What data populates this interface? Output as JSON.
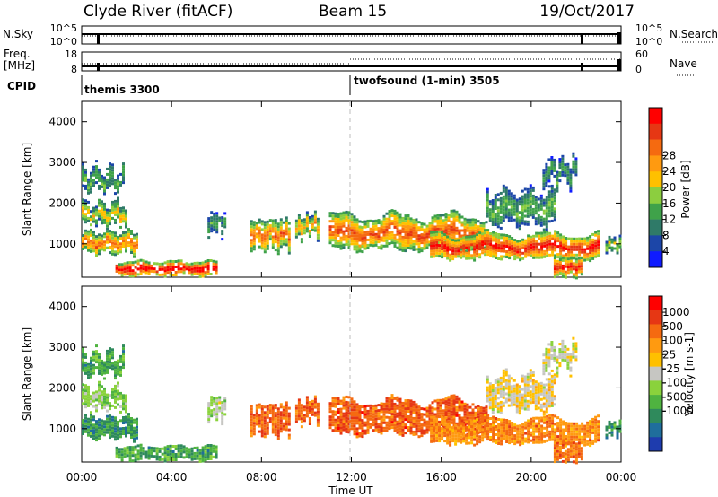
{
  "header": {
    "station": "Clyde River (fitACF)",
    "beam": "Beam 15",
    "date": "19/Oct/2017"
  },
  "status_panels": {
    "nsky_label": "N.Sky",
    "nsky_ticks": [
      "10^5",
      "10^0"
    ],
    "nsearch_label": "N.Search",
    "nsearch_ticks": [
      "10^5",
      "10^0"
    ],
    "freq_label_line1": "Freq.",
    "freq_label_line2": "[MHz]",
    "freq_ticks": [
      "18",
      "8"
    ],
    "nave_label": "Nave",
    "nave_ticks": [
      "60",
      "0"
    ],
    "cpid_label": "CPID",
    "cpid_segments": [
      {
        "name": "themis 3300",
        "start_hour": 0,
        "end_hour": 12
      },
      {
        "name": "twofsound (1-min) 3505",
        "start_hour": 12,
        "end_hour": 24
      }
    ]
  },
  "time_axis": {
    "label": "Time UT",
    "ticks": [
      "00:00",
      "04:00",
      "08:00",
      "12:00",
      "16:00",
      "20:00",
      "00:00"
    ],
    "range_hours": [
      0,
      24
    ]
  },
  "chart_data": [
    {
      "type": "heatmap",
      "quantity": "power",
      "ylabel": "Slant Range [km]",
      "yticks": [
        "1000",
        "2000",
        "3000",
        "4000"
      ],
      "ylim": [
        180,
        4500
      ],
      "xlim_hours": [
        0,
        24
      ],
      "colorbar": {
        "label": "Power [dB]",
        "ticks": [
          "4",
          "8",
          "12",
          "16",
          "20",
          "24",
          "28"
        ],
        "colors": [
          "#0f1bff",
          "#1c46a8",
          "#2f7a68",
          "#3fa24a",
          "#8cce3f",
          "#ffc000",
          "#ff9a10",
          "#f56a10",
          "#e63714",
          "#ff0000"
        ]
      },
      "echo_regions": [
        {
          "t0": 0.0,
          "t1": 2.5,
          "r_center": 1050,
          "r_width": 500,
          "level": 0.65
        },
        {
          "t0": 0.0,
          "t1": 2.0,
          "r_center": 1750,
          "r_width": 500,
          "level": 0.5
        },
        {
          "t0": 0.0,
          "t1": 1.8,
          "r_center": 2600,
          "r_width": 500,
          "level": 0.35
        },
        {
          "t0": 1.5,
          "t1": 6.0,
          "r_center": 420,
          "r_width": 320,
          "level": 0.9
        },
        {
          "t0": 5.6,
          "t1": 6.4,
          "r_center": 1500,
          "r_width": 500,
          "level": 0.3
        },
        {
          "t0": 7.5,
          "t1": 9.2,
          "r_center": 1250,
          "r_width": 700,
          "level": 0.65
        },
        {
          "t0": 9.5,
          "t1": 10.5,
          "r_center": 1450,
          "r_width": 500,
          "level": 0.55
        },
        {
          "t0": 11.0,
          "t1": 18.0,
          "r_center": 1300,
          "r_width": 800,
          "level": 0.7
        },
        {
          "t0": 15.5,
          "t1": 23.0,
          "r_center": 950,
          "r_width": 600,
          "level": 0.8
        },
        {
          "t0": 18.0,
          "t1": 21.0,
          "r_center": 1900,
          "r_width": 800,
          "level": 0.35
        },
        {
          "t0": 20.5,
          "t1": 22.0,
          "r_center": 2800,
          "r_width": 500,
          "level": 0.3
        },
        {
          "t0": 21.0,
          "t1": 22.3,
          "r_center": 450,
          "r_width": 450,
          "level": 0.8
        },
        {
          "t0": 23.3,
          "t1": 24.0,
          "r_center": 1000,
          "r_width": 300,
          "level": 0.45
        }
      ]
    },
    {
      "type": "heatmap",
      "quantity": "velocity",
      "ylabel": "Slant Range [km]",
      "yticks": [
        "1000",
        "2000",
        "3000",
        "4000"
      ],
      "ylim": [
        180,
        4500
      ],
      "xlim_hours": [
        0,
        24
      ],
      "colorbar": {
        "label": "Velocity [m s-1]",
        "ticks": [
          "1000",
          "500",
          "100",
          "25",
          "-25",
          "-100",
          "-500",
          "-1000"
        ],
        "colors": [
          "#1e3cae",
          "#1f6e9c",
          "#2f8a5c",
          "#4fb340",
          "#8ad23c",
          "#c6c6c2",
          "#ffc000",
          "#ff9a10",
          "#f56a10",
          "#e63714",
          "#ff0000"
        ]
      },
      "echo_regions": [
        {
          "t0": 0.0,
          "t1": 2.5,
          "r_center": 1050,
          "r_width": 500,
          "level": 0.25
        },
        {
          "t0": 0.0,
          "t1": 2.0,
          "r_center": 1750,
          "r_width": 500,
          "level": 0.4
        },
        {
          "t0": 0.0,
          "t1": 1.8,
          "r_center": 2600,
          "r_width": 500,
          "level": 0.3
        },
        {
          "t0": 1.5,
          "t1": 6.0,
          "r_center": 420,
          "r_width": 320,
          "level": 0.3
        },
        {
          "t0": 5.6,
          "t1": 6.4,
          "r_center": 1500,
          "r_width": 500,
          "level": 0.45
        },
        {
          "t0": 7.5,
          "t1": 9.2,
          "r_center": 1250,
          "r_width": 700,
          "level": 0.78
        },
        {
          "t0": 9.5,
          "t1": 10.5,
          "r_center": 1450,
          "r_width": 500,
          "level": 0.78
        },
        {
          "t0": 11.0,
          "t1": 18.0,
          "r_center": 1300,
          "r_width": 800,
          "level": 0.8
        },
        {
          "t0": 15.5,
          "t1": 23.0,
          "r_center": 950,
          "r_width": 600,
          "level": 0.72
        },
        {
          "t0": 18.0,
          "t1": 21.0,
          "r_center": 1900,
          "r_width": 800,
          "level": 0.55
        },
        {
          "t0": 20.5,
          "t1": 22.0,
          "r_center": 2800,
          "r_width": 500,
          "level": 0.5
        },
        {
          "t0": 21.0,
          "t1": 22.3,
          "r_center": 450,
          "r_width": 450,
          "level": 0.75
        },
        {
          "t0": 23.3,
          "t1": 24.0,
          "r_center": 1000,
          "r_width": 300,
          "level": 0.25
        }
      ]
    }
  ]
}
